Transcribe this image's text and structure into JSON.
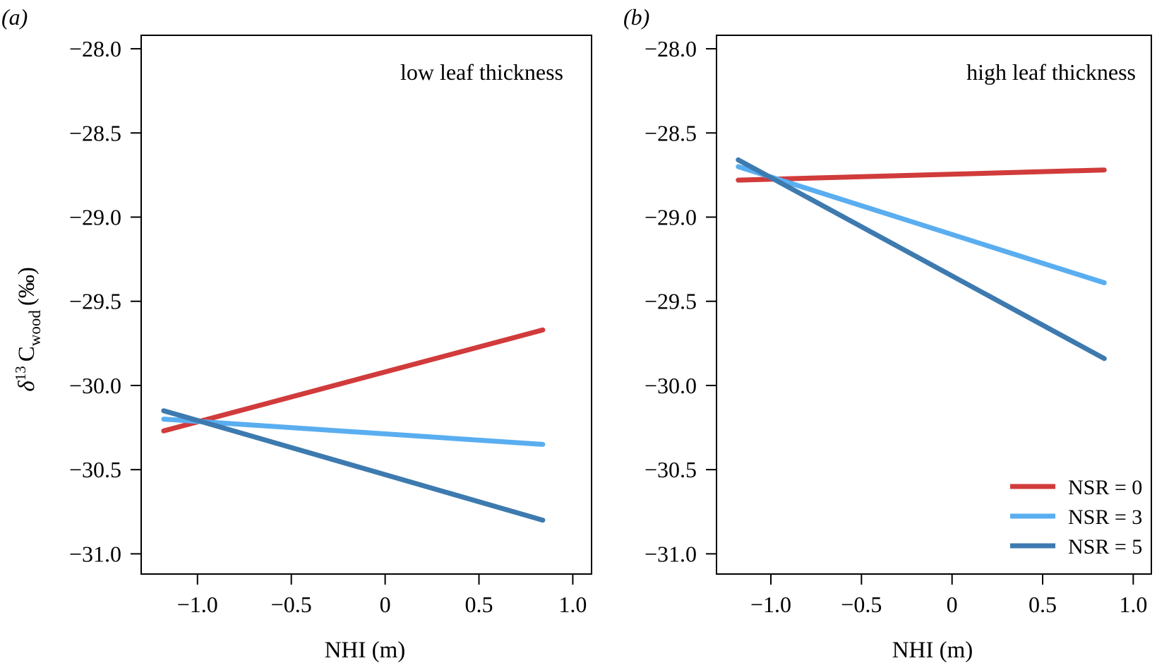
{
  "chart_data": [
    {
      "type": "line",
      "panel_label": "(a)",
      "annotation": "low leaf thickness",
      "xlabel": "NHI (m)",
      "ylabel": {
        "prefix": "δ",
        "superscript": "13",
        "main": "C",
        "subscript": "wood",
        "suffix": "(‰)"
      },
      "xlim": [
        -1.3,
        1.1
      ],
      "ylim": [
        -31.12,
        -27.92
      ],
      "xticks": [
        -1.0,
        -0.5,
        0,
        0.5,
        1.0
      ],
      "xtick_labels": [
        "−1.0",
        "−0.5",
        "0",
        "0.5",
        "1.0"
      ],
      "yticks": [
        -28.0,
        -28.5,
        -29.0,
        -29.5,
        -30.0,
        -30.5,
        -31.0
      ],
      "ytick_labels": [
        "−28.0",
        "−28.5",
        "−29.0",
        "−29.5",
        "−30.0",
        "−30.5",
        "−31.0"
      ],
      "grid": false,
      "series": [
        {
          "name": "NSR = 0",
          "color": "#d13b3b",
          "x": [
            -1.18,
            0.84
          ],
          "y": [
            -30.27,
            -29.67
          ]
        },
        {
          "name": "NSR = 3",
          "color": "#5aaef0",
          "x": [
            -1.18,
            0.84
          ],
          "y": [
            -30.2,
            -30.35
          ]
        },
        {
          "name": "NSR = 5",
          "color": "#3d7aaf",
          "x": [
            -1.18,
            0.84
          ],
          "y": [
            -30.15,
            -30.8
          ]
        }
      ]
    },
    {
      "type": "line",
      "panel_label": "(b)",
      "annotation": "high leaf thickness",
      "xlabel": "NHI (m)",
      "xlim": [
        -1.3,
        1.1
      ],
      "ylim": [
        -31.12,
        -27.92
      ],
      "xticks": [
        -1.0,
        -0.5,
        0,
        0.5,
        1.0
      ],
      "xtick_labels": [
        "−1.0",
        "−0.5",
        "0",
        "0.5",
        "1.0"
      ],
      "yticks": [
        -28.0,
        -28.5,
        -29.0,
        -29.5,
        -30.0,
        -30.5,
        -31.0
      ],
      "ytick_labels": [
        "−28.0",
        "−28.5",
        "−29.0",
        "−29.5",
        "−30.0",
        "−30.5",
        "−31.0"
      ],
      "grid": false,
      "legend": {
        "position": "bottom-right",
        "entries": [
          "NSR = 0",
          "NSR = 3",
          "NSR = 5"
        ]
      },
      "series": [
        {
          "name": "NSR = 0",
          "color": "#d13b3b",
          "x": [
            -1.18,
            0.84
          ],
          "y": [
            -28.78,
            -28.72
          ]
        },
        {
          "name": "NSR = 3",
          "color": "#5aaef0",
          "x": [
            -1.18,
            0.84
          ],
          "y": [
            -28.7,
            -29.39
          ]
        },
        {
          "name": "NSR = 5",
          "color": "#3d7aaf",
          "x": [
            -1.18,
            0.84
          ],
          "y": [
            -28.66,
            -29.84
          ]
        }
      ]
    }
  ]
}
